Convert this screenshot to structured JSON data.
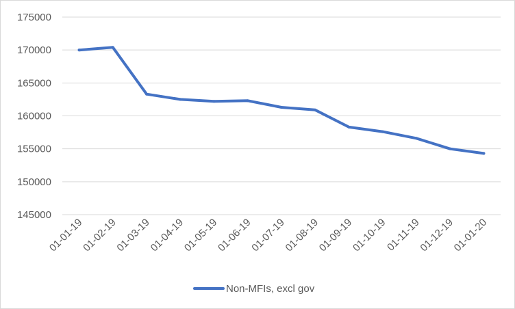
{
  "chart_data": {
    "type": "line",
    "title": "",
    "xlabel": "",
    "ylabel": "",
    "categories": [
      "01-01-19",
      "01-02-19",
      "01-03-19",
      "01-04-19",
      "01-05-19",
      "01-06-19",
      "01-07-19",
      "01-08-19",
      "01-09-19",
      "01-10-19",
      "01-11-19",
      "01-12-19",
      "01-01-20"
    ],
    "series": [
      {
        "name": "Non-MFIs, excl gov",
        "color": "#4472c4",
        "values": [
          170000,
          170400,
          163300,
          162500,
          162200,
          162300,
          161300,
          160900,
          158300,
          157600,
          156600,
          155000,
          154300
        ]
      }
    ],
    "ylim": [
      145000,
      175000
    ],
    "yticks": [
      145000,
      150000,
      155000,
      160000,
      165000,
      170000,
      175000
    ],
    "grid": true,
    "legend_position": "bottom"
  }
}
